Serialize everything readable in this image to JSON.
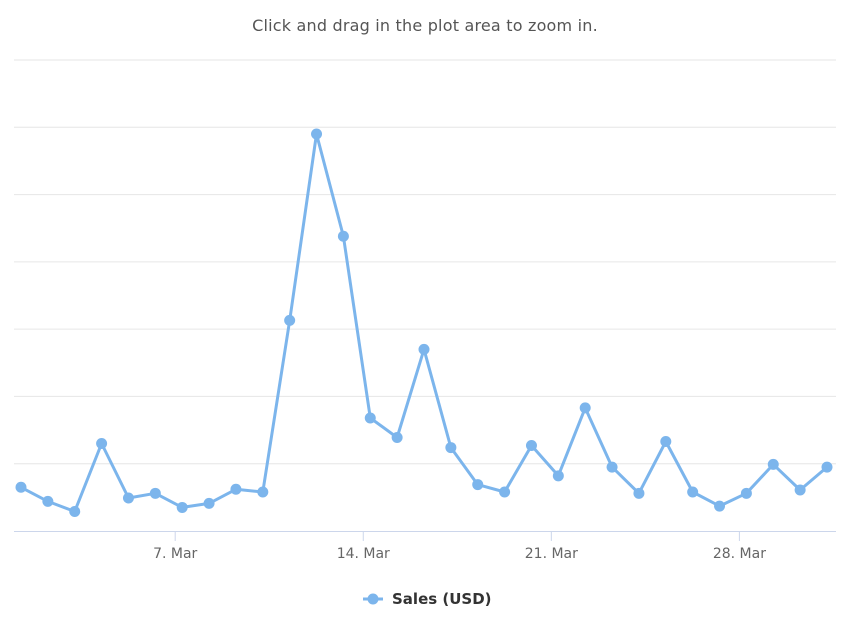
{
  "subtitle": "Click and drag in the plot area to zoom in.",
  "colors": {
    "series": "#7cb5ec",
    "grid": "#e6e6e6",
    "axis": "#ccd6eb",
    "text": "#666666"
  },
  "chart_data": {
    "type": "line",
    "x_type": "datetime",
    "x": [
      "1 Mar",
      "2 Mar",
      "3 Mar",
      "4 Mar",
      "5 Mar",
      "6 Mar",
      "7 Mar",
      "8 Mar",
      "9 Mar",
      "10 Mar",
      "11 Mar",
      "12 Mar",
      "13 Mar",
      "14 Mar",
      "15 Mar",
      "16 Mar",
      "17 Mar",
      "18 Mar",
      "19 Mar",
      "20 Mar",
      "21 Mar",
      "22 Mar",
      "23 Mar",
      "24 Mar",
      "25 Mar",
      "26 Mar",
      "27 Mar",
      "28 Mar",
      "29 Mar",
      "30 Mar",
      "31 Mar"
    ],
    "x_tick_labels": [
      "7. Mar",
      "14. Mar",
      "21. Mar",
      "28. Mar"
    ],
    "series": [
      {
        "name": "Sales (USD)",
        "values": [
          0.65,
          0.44,
          0.29,
          1.3,
          0.49,
          0.56,
          0.35,
          0.41,
          0.62,
          0.58,
          3.13,
          5.9,
          4.38,
          1.68,
          1.39,
          2.7,
          1.24,
          0.69,
          0.58,
          1.27,
          0.82,
          1.83,
          0.95,
          0.56,
          1.33,
          0.58,
          0.37,
          0.56,
          0.99,
          0.61,
          0.95
        ]
      }
    ],
    "ylim": [
      0,
      7
    ],
    "y_gridlines": 7,
    "y_tick_labels_visible": false,
    "grid": true,
    "legend": "bottom-center",
    "title": "",
    "xlabel": "",
    "ylabel": ""
  }
}
